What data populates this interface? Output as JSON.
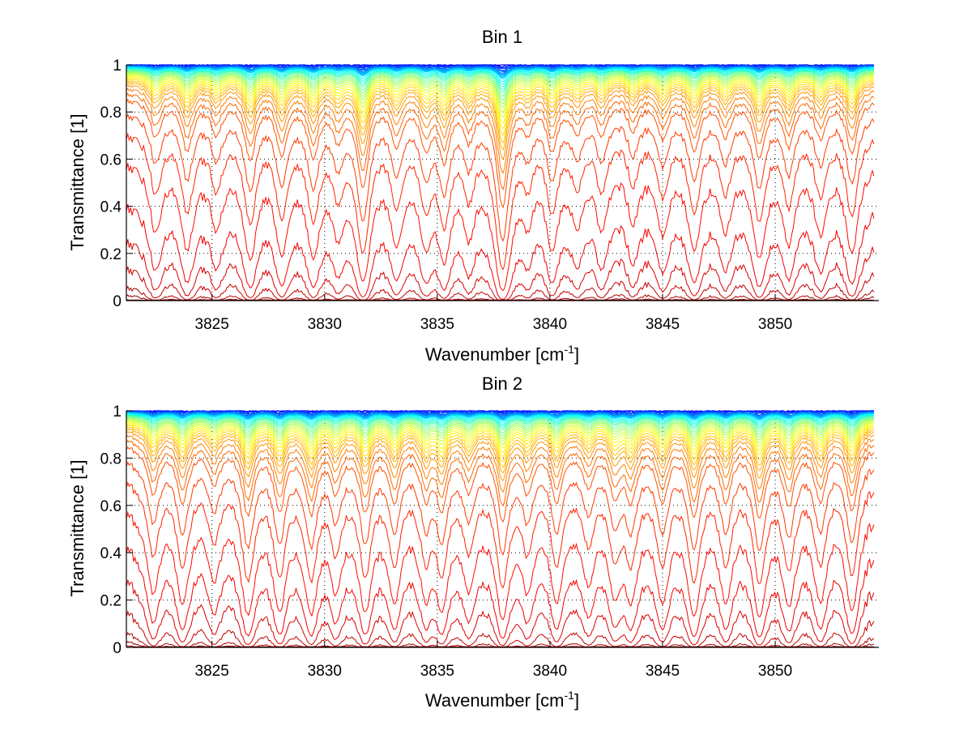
{
  "chart_data": [
    {
      "type": "line",
      "title": "Bin 1",
      "xlabel": "Wavenumber [cm",
      "xlabel_superscript": "-1",
      "xlabel_suffix": "]",
      "ylabel": "Transmittance [1]",
      "xlim": [
        3821.2,
        3854.6
      ],
      "ylim": [
        0,
        1
      ],
      "xticks": [
        3825,
        3830,
        3835,
        3840,
        3845,
        3850
      ],
      "xtick_labels": [
        "3825",
        "3830",
        "3835",
        "3840",
        "3845",
        "3850"
      ],
      "yticks": [
        0,
        0.2,
        0.4,
        0.6,
        0.8,
        1
      ],
      "ytick_labels": [
        "0",
        "0.2",
        "0.4",
        "0.6",
        "0.8",
        "1"
      ],
      "grid": true,
      "colormap": "jet",
      "n_series": 40,
      "series_description": "Family of transmittance spectra for increasing absorber amount (blue = near 1, dark red = near 0)",
      "baseline_levels": [
        1.0,
        0.999,
        0.998,
        0.997,
        0.996,
        0.995,
        0.994,
        0.993,
        0.992,
        0.991,
        0.99,
        0.988,
        0.986,
        0.984,
        0.982,
        0.98,
        0.977,
        0.974,
        0.971,
        0.968,
        0.964,
        0.96,
        0.955,
        0.95,
        0.944,
        0.937,
        0.93,
        0.92,
        0.905,
        0.885,
        0.86,
        0.8,
        0.72,
        0.6,
        0.43,
        0.28,
        0.16,
        0.07,
        0.03,
        0.005
      ],
      "absorption_lines": [
        {
          "x": 3822.5,
          "depth": 0.6
        },
        {
          "x": 3823.9,
          "depth": 0.85
        },
        {
          "x": 3825.2,
          "depth": 0.55
        },
        {
          "x": 3826.7,
          "depth": 1.0
        },
        {
          "x": 3828.1,
          "depth": 0.9
        },
        {
          "x": 3829.5,
          "depth": 0.95
        },
        {
          "x": 3830.6,
          "depth": 0.6
        },
        {
          "x": 3831.7,
          "depth": 1.6
        },
        {
          "x": 3833.2,
          "depth": 0.7
        },
        {
          "x": 3834.5,
          "depth": 0.75
        },
        {
          "x": 3835.3,
          "depth": 1.0
        },
        {
          "x": 3836.4,
          "depth": 0.6
        },
        {
          "x": 3837.9,
          "depth": 2.2
        },
        {
          "x": 3839.0,
          "depth": 0.4
        },
        {
          "x": 3840.1,
          "depth": 0.8
        },
        {
          "x": 3841.2,
          "depth": 0.5
        },
        {
          "x": 3842.3,
          "depth": 0.55
        },
        {
          "x": 3843.7,
          "depth": 0.45
        },
        {
          "x": 3845.0,
          "depth": 0.6
        },
        {
          "x": 3846.4,
          "depth": 0.85
        },
        {
          "x": 3847.8,
          "depth": 0.55
        },
        {
          "x": 3849.3,
          "depth": 1.0
        },
        {
          "x": 3850.6,
          "depth": 0.75
        },
        {
          "x": 3852.0,
          "depth": 0.6
        },
        {
          "x": 3853.4,
          "depth": 0.9
        }
      ]
    },
    {
      "type": "line",
      "title": "Bin 2",
      "xlabel": "Wavenumber [cm",
      "xlabel_superscript": "-1",
      "xlabel_suffix": "]",
      "ylabel": "Transmittance [1]",
      "xlim": [
        3821.2,
        3854.6
      ],
      "ylim": [
        0,
        1
      ],
      "xticks": [
        3825,
        3830,
        3835,
        3840,
        3845,
        3850
      ],
      "xtick_labels": [
        "3825",
        "3830",
        "3835",
        "3840",
        "3845",
        "3850"
      ],
      "yticks": [
        0,
        0.2,
        0.4,
        0.6,
        0.8,
        1
      ],
      "ytick_labels": [
        "0",
        "0.2",
        "0.4",
        "0.6",
        "0.8",
        "1"
      ],
      "grid": true,
      "colormap": "jet",
      "n_series": 40,
      "series_description": "Family of transmittance spectra for increasing absorber amount (blue = near 1, dark red = near 0)",
      "baseline_levels": [
        1.0,
        0.999,
        0.998,
        0.997,
        0.996,
        0.995,
        0.994,
        0.993,
        0.992,
        0.991,
        0.99,
        0.988,
        0.986,
        0.984,
        0.982,
        0.98,
        0.977,
        0.974,
        0.971,
        0.968,
        0.964,
        0.96,
        0.955,
        0.95,
        0.944,
        0.937,
        0.93,
        0.92,
        0.905,
        0.885,
        0.86,
        0.8,
        0.72,
        0.6,
        0.46,
        0.32,
        0.18,
        0.08,
        0.035,
        0.01
      ],
      "absorption_lines": [
        {
          "x": 3822.4,
          "depth": 0.8
        },
        {
          "x": 3823.7,
          "depth": 0.95
        },
        {
          "x": 3825.1,
          "depth": 0.6
        },
        {
          "x": 3826.6,
          "depth": 1.2
        },
        {
          "x": 3828.0,
          "depth": 1.1
        },
        {
          "x": 3829.4,
          "depth": 1.15
        },
        {
          "x": 3830.5,
          "depth": 0.7
        },
        {
          "x": 3831.8,
          "depth": 1.1
        },
        {
          "x": 3833.1,
          "depth": 0.9
        },
        {
          "x": 3834.5,
          "depth": 0.8
        },
        {
          "x": 3835.2,
          "depth": 1.0
        },
        {
          "x": 3836.4,
          "depth": 0.7
        },
        {
          "x": 3837.9,
          "depth": 1.3
        },
        {
          "x": 3839.0,
          "depth": 0.7
        },
        {
          "x": 3840.3,
          "depth": 0.9
        },
        {
          "x": 3841.7,
          "depth": 0.6
        },
        {
          "x": 3842.9,
          "depth": 0.8
        },
        {
          "x": 3843.6,
          "depth": 0.85
        },
        {
          "x": 3845.0,
          "depth": 0.9
        },
        {
          "x": 3846.4,
          "depth": 1.2
        },
        {
          "x": 3847.8,
          "depth": 0.9
        },
        {
          "x": 3849.3,
          "depth": 1.25
        },
        {
          "x": 3850.6,
          "depth": 1.0
        },
        {
          "x": 3852.0,
          "depth": 0.9
        },
        {
          "x": 3853.4,
          "depth": 1.1
        }
      ]
    }
  ]
}
